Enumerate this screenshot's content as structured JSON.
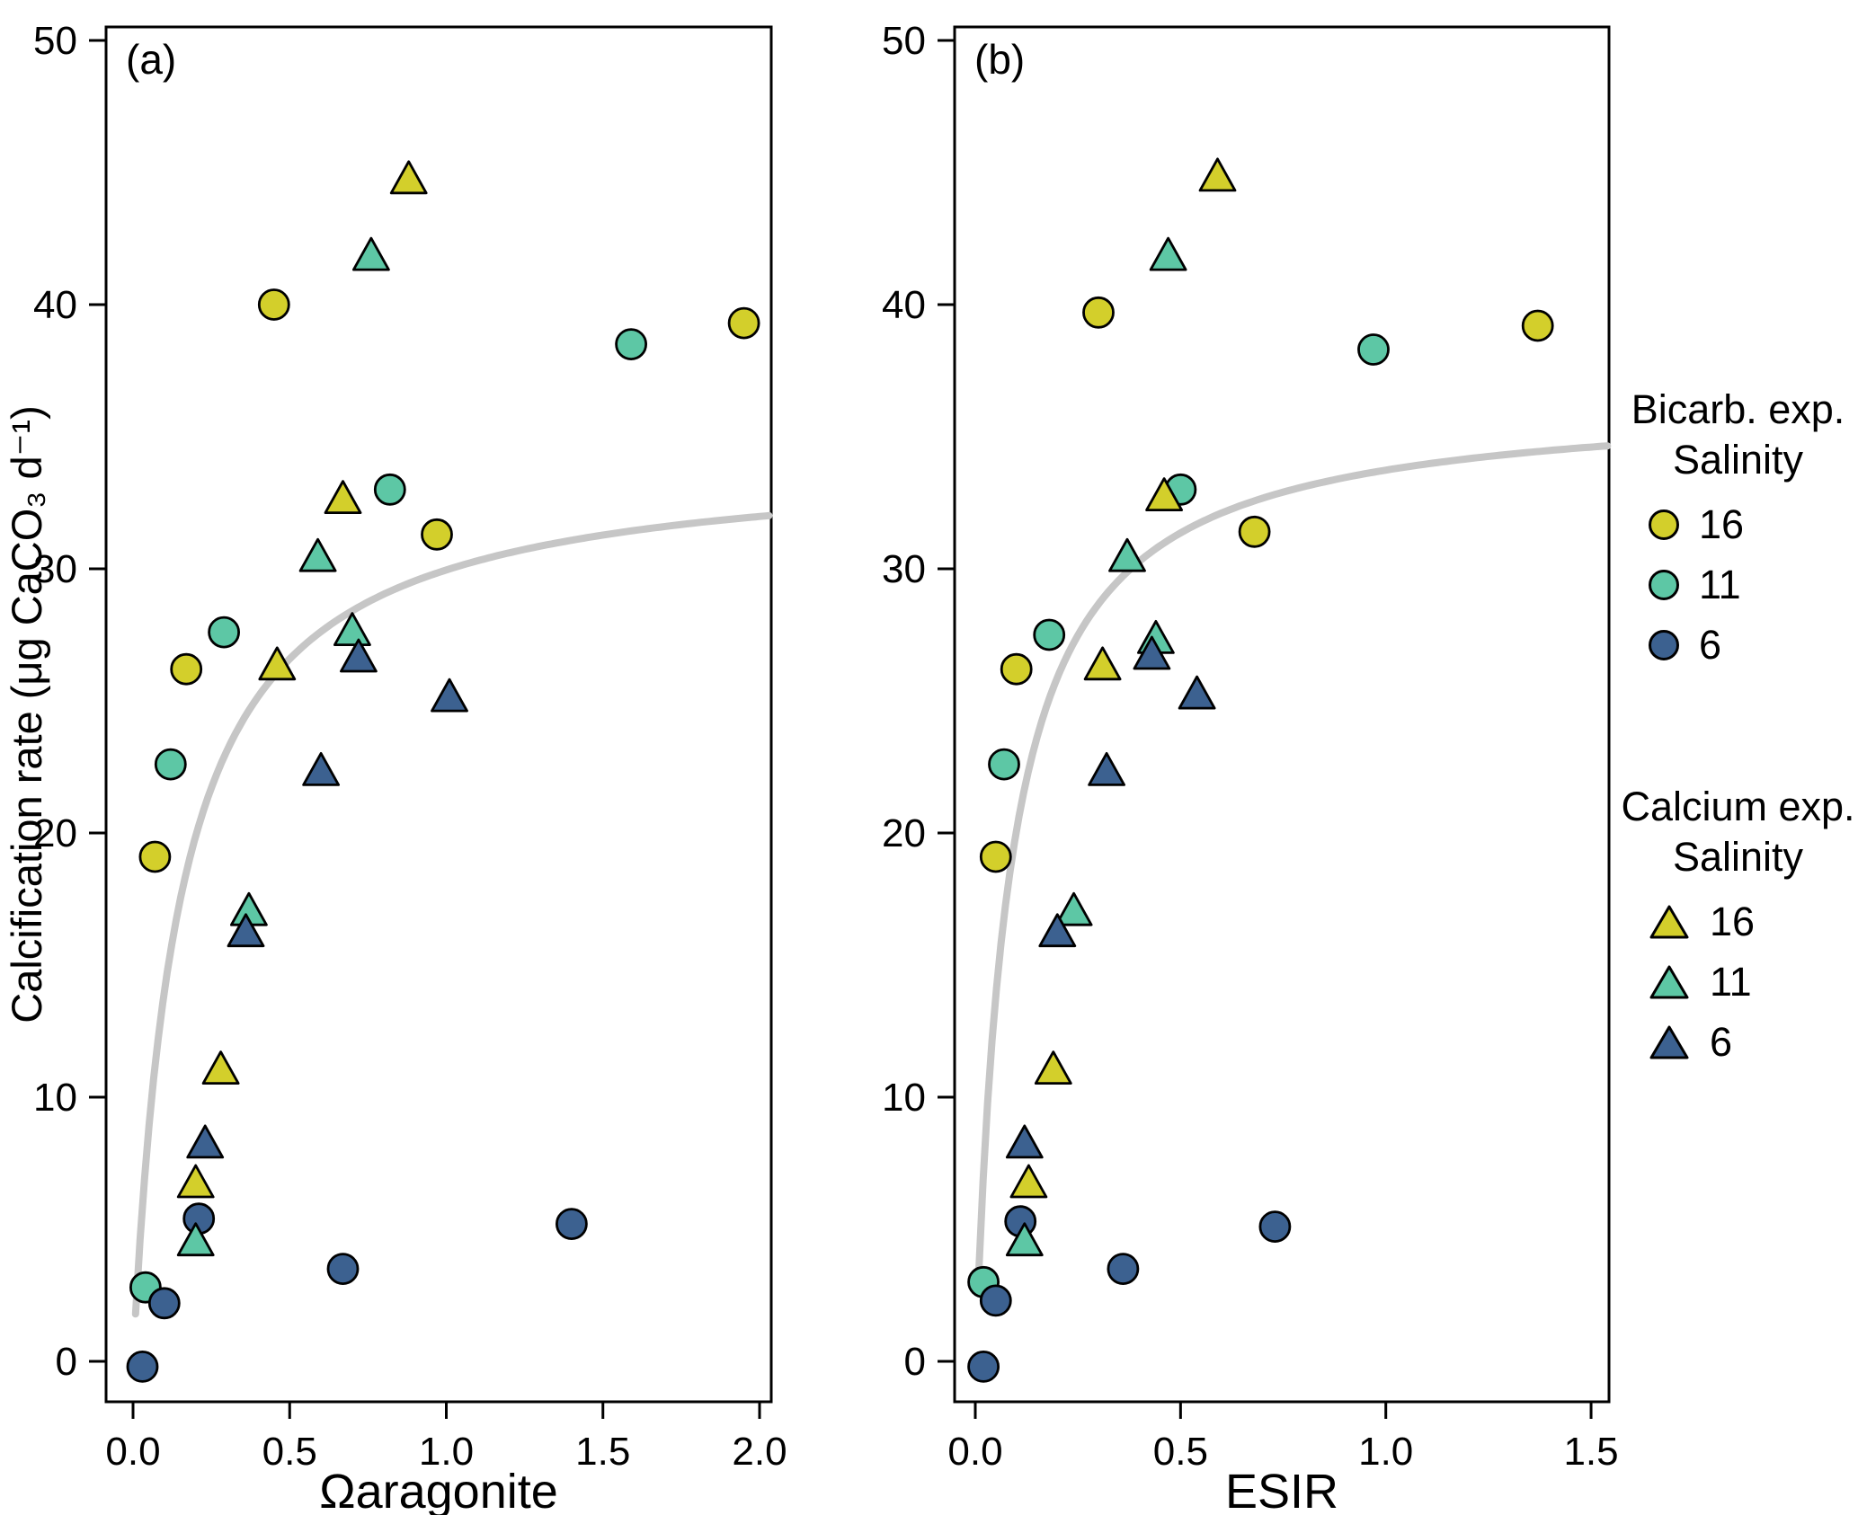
{
  "figure": {
    "panel_a_label": "(a)",
    "panel_b_label": "(b)"
  },
  "colors": {
    "salinity_16": "#d3cf2b",
    "salinity_11": "#5dc7a5",
    "salinity_6": "#3c6190",
    "curve": "#c6c6c6",
    "outline": "#000000"
  },
  "legend": {
    "groups": [
      {
        "title": "Bicarb. exp.",
        "subtitle": "Salinity",
        "marker": "circle",
        "entries": [
          {
            "label": "16",
            "color_key": "salinity_16"
          },
          {
            "label": "11",
            "color_key": "salinity_11"
          },
          {
            "label": "6",
            "color_key": "salinity_6"
          }
        ]
      },
      {
        "title": "Calcium exp.",
        "subtitle": "Salinity",
        "marker": "triangle",
        "entries": [
          {
            "label": "16",
            "color_key": "salinity_16"
          },
          {
            "label": "11",
            "color_key": "salinity_11"
          },
          {
            "label": "6",
            "color_key": "salinity_6"
          }
        ]
      }
    ]
  },
  "chart_data": [
    {
      "type": "scatter",
      "panel_label": "(a)",
      "xlabel": "Ωaragonite",
      "ylabel": "Calcification rate (μg CaCO₃ d⁻¹)",
      "xlim": [
        0,
        2.0
      ],
      "ylim": [
        0,
        50
      ],
      "grid": false,
      "x_tick_values": [
        0,
        0.5,
        1.0,
        1.5,
        2.0
      ],
      "x_tick_labels": [
        "0.0",
        "0.5",
        "1.0",
        "1.5",
        "2.0"
      ],
      "y_tick_values": [
        0,
        10,
        20,
        30,
        40,
        50
      ],
      "y_tick_labels": [
        "0",
        "10",
        "20",
        "30",
        "40",
        "50"
      ],
      "series": [
        {
          "name": "Bicarb. exp. Salinity 16",
          "marker": "circle",
          "color_key": "salinity_16",
          "points": [
            [
              0.07,
              19.1
            ],
            [
              0.17,
              26.2
            ],
            [
              0.45,
              40.0
            ],
            [
              0.97,
              31.3
            ],
            [
              1.95,
              39.3
            ]
          ]
        },
        {
          "name": "Bicarb. exp. Salinity 11",
          "marker": "circle",
          "color_key": "salinity_11",
          "points": [
            [
              0.04,
              2.8
            ],
            [
              0.12,
              22.6
            ],
            [
              0.29,
              27.6
            ],
            [
              0.82,
              33.0
            ],
            [
              1.59,
              38.5
            ]
          ]
        },
        {
          "name": "Bicarb. exp. Salinity 6",
          "marker": "circle",
          "color_key": "salinity_6",
          "points": [
            [
              0.03,
              -0.2
            ],
            [
              0.1,
              2.2
            ],
            [
              0.21,
              5.4
            ],
            [
              0.67,
              3.5
            ],
            [
              1.4,
              5.2
            ]
          ]
        },
        {
          "name": "Calcium exp. Salinity 16",
          "marker": "triangle",
          "color_key": "salinity_16",
          "points": [
            [
              0.2,
              6.7
            ],
            [
              0.28,
              11.0
            ],
            [
              0.46,
              26.3
            ],
            [
              0.67,
              32.6
            ],
            [
              0.88,
              44.7
            ]
          ]
        },
        {
          "name": "Calcium exp. Salinity 11",
          "marker": "triangle",
          "color_key": "salinity_11",
          "points": [
            [
              0.2,
              4.5
            ],
            [
              0.37,
              17.0
            ],
            [
              0.59,
              30.4
            ],
            [
              0.7,
              27.6
            ],
            [
              0.76,
              41.8
            ]
          ]
        },
        {
          "name": "Calcium exp. Salinity 6",
          "marker": "triangle",
          "color_key": "salinity_6",
          "points": [
            [
              0.23,
              8.2
            ],
            [
              0.36,
              16.2
            ],
            [
              0.6,
              22.3
            ],
            [
              0.72,
              26.6
            ],
            [
              1.01,
              25.1
            ]
          ]
        }
      ],
      "fit_curve": {
        "form": "y = vmax·x/(k+x)",
        "vmax": 34.3,
        "k": 0.145,
        "x_range": [
          0.008,
          2.03
        ]
      }
    },
    {
      "type": "scatter",
      "panel_label": "(b)",
      "xlabel": "ESIR",
      "ylabel": "",
      "xlim": [
        0,
        1.5
      ],
      "ylim": [
        0,
        50
      ],
      "grid": false,
      "x_tick_values": [
        0,
        0.5,
        1.0,
        1.5
      ],
      "x_tick_labels": [
        "0.0",
        "0.5",
        "1.0",
        "1.5"
      ],
      "y_tick_values": [
        0,
        10,
        20,
        30,
        40,
        50
      ],
      "y_tick_labels": [
        "0",
        "10",
        "20",
        "30",
        "40",
        "50"
      ],
      "series": [
        {
          "name": "Bicarb. exp. Salinity 16",
          "marker": "circle",
          "color_key": "salinity_16",
          "points": [
            [
              0.05,
              19.1
            ],
            [
              0.1,
              26.2
            ],
            [
              0.3,
              39.7
            ],
            [
              0.68,
              31.4
            ],
            [
              1.37,
              39.2
            ]
          ]
        },
        {
          "name": "Bicarb. exp. Salinity 11",
          "marker": "circle",
          "color_key": "salinity_11",
          "points": [
            [
              0.02,
              3.0
            ],
            [
              0.07,
              22.6
            ],
            [
              0.18,
              27.5
            ],
            [
              0.5,
              33.0
            ],
            [
              0.97,
              38.3
            ]
          ]
        },
        {
          "name": "Bicarb. exp. Salinity 6",
          "marker": "circle",
          "color_key": "salinity_6",
          "points": [
            [
              0.02,
              -0.2
            ],
            [
              0.05,
              2.3
            ],
            [
              0.11,
              5.3
            ],
            [
              0.36,
              3.5
            ],
            [
              0.73,
              5.1
            ]
          ]
        },
        {
          "name": "Calcium exp. Salinity 16",
          "marker": "triangle",
          "color_key": "salinity_16",
          "points": [
            [
              0.13,
              6.7
            ],
            [
              0.19,
              11.0
            ],
            [
              0.31,
              26.3
            ],
            [
              0.46,
              32.7
            ],
            [
              0.59,
              44.8
            ]
          ]
        },
        {
          "name": "Calcium exp. Salinity 11",
          "marker": "triangle",
          "color_key": "salinity_11",
          "points": [
            [
              0.12,
              4.5
            ],
            [
              0.24,
              17.0
            ],
            [
              0.37,
              30.4
            ],
            [
              0.44,
              27.3
            ],
            [
              0.47,
              41.8
            ]
          ]
        },
        {
          "name": "Calcium exp. Salinity 6",
          "marker": "triangle",
          "color_key": "salinity_6",
          "points": [
            [
              0.12,
              8.2
            ],
            [
              0.2,
              16.2
            ],
            [
              0.32,
              22.3
            ],
            [
              0.43,
              26.7
            ],
            [
              0.54,
              25.2
            ]
          ]
        }
      ],
      "fit_curve": {
        "form": "y = vmax·x/(k+x)",
        "vmax": 36.5,
        "k": 0.082,
        "x_range": [
          0.008,
          1.54
        ]
      }
    }
  ]
}
